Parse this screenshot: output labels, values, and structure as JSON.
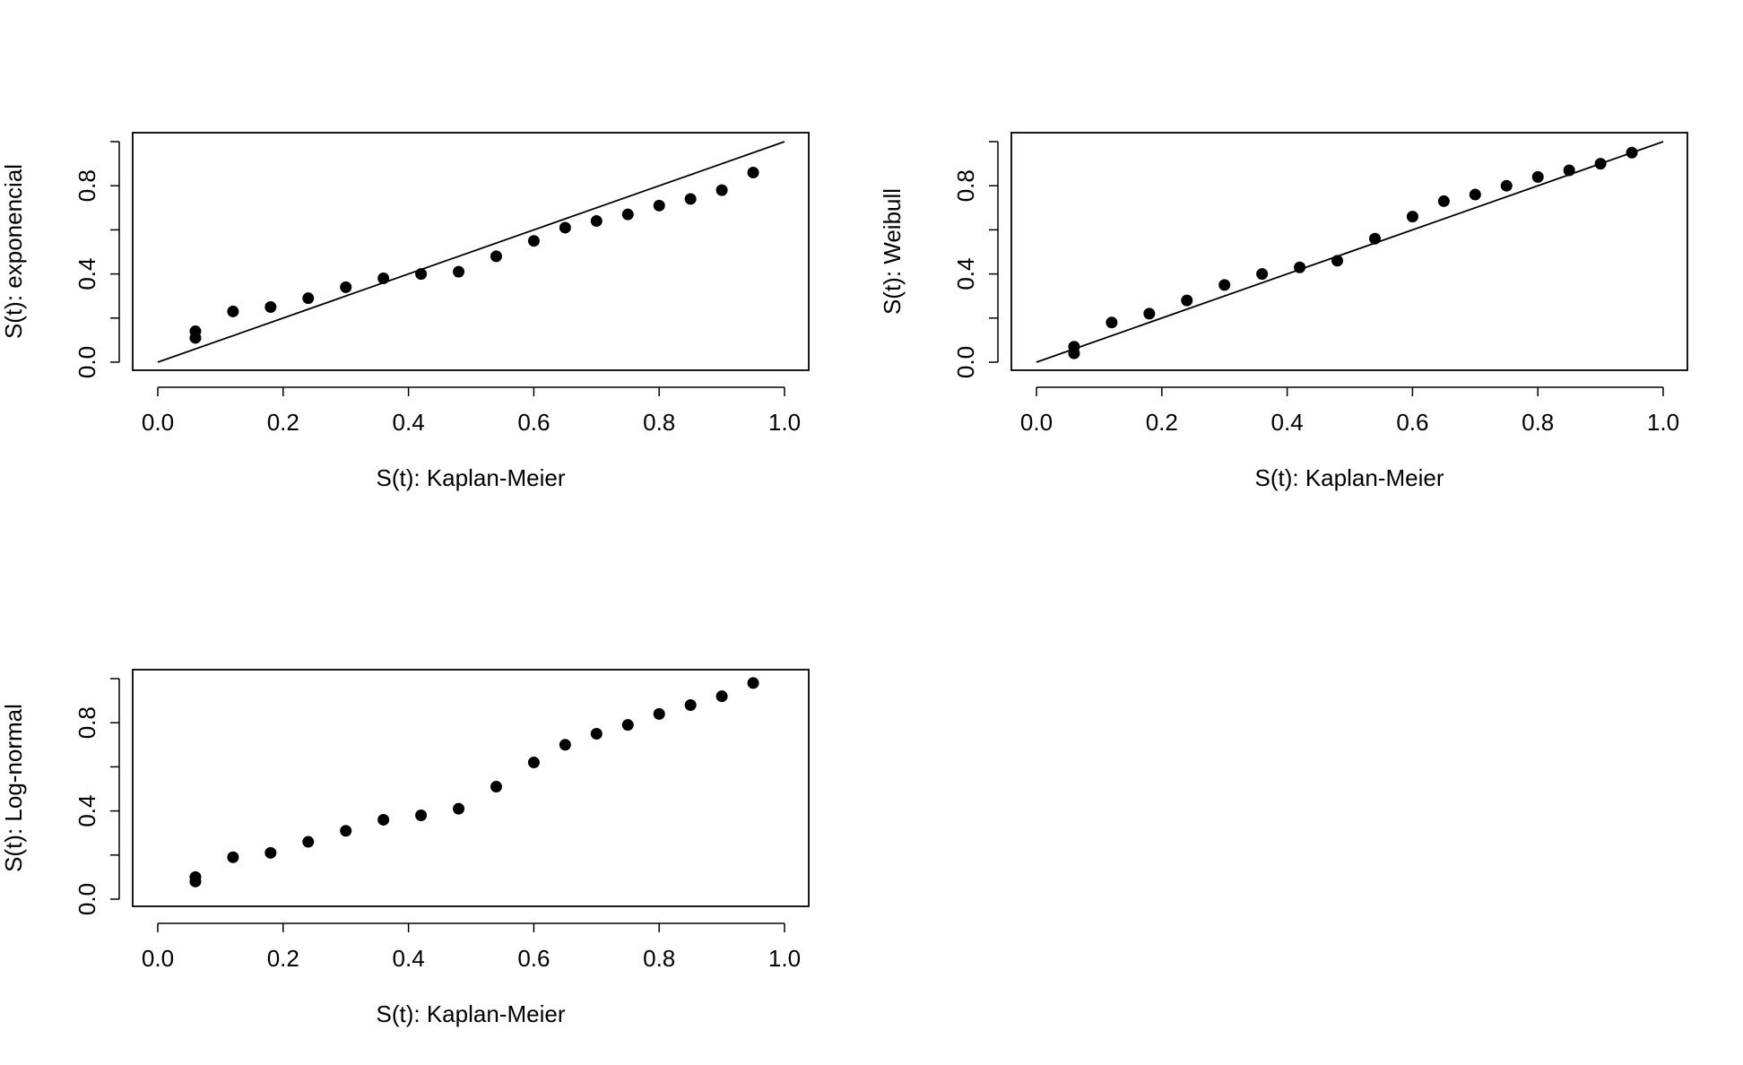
{
  "chart_data": [
    {
      "type": "scatter",
      "xlabel": "S(t): Kaplan-Meier",
      "ylabel": "S(t): exponencial",
      "xlim": [
        0,
        1
      ],
      "ylim": [
        0,
        1
      ],
      "xticks": [
        "0.0",
        "0.2",
        "0.4",
        "0.6",
        "0.8",
        "1.0"
      ],
      "yticks": [
        "0.0",
        "0.4",
        "0.8"
      ],
      "reference_line": "y = x",
      "x": [
        0.06,
        0.06,
        0.12,
        0.18,
        0.24,
        0.3,
        0.36,
        0.42,
        0.48,
        0.54,
        0.6,
        0.65,
        0.7,
        0.75,
        0.8,
        0.85,
        0.9,
        0.95
      ],
      "y": [
        0.11,
        0.14,
        0.23,
        0.25,
        0.29,
        0.34,
        0.38,
        0.4,
        0.41,
        0.48,
        0.55,
        0.61,
        0.64,
        0.67,
        0.71,
        0.74,
        0.78,
        0.86
      ]
    },
    {
      "type": "scatter",
      "xlabel": "S(t): Kaplan-Meier",
      "ylabel": "S(t): Weibull",
      "xlim": [
        0,
        1
      ],
      "ylim": [
        0,
        1
      ],
      "xticks": [
        "0.0",
        "0.2",
        "0.4",
        "0.6",
        "0.8",
        "1.0"
      ],
      "yticks": [
        "0.0",
        "0.4",
        "0.8"
      ],
      "reference_line": "y = x",
      "x": [
        0.06,
        0.06,
        0.12,
        0.18,
        0.24,
        0.3,
        0.36,
        0.42,
        0.48,
        0.54,
        0.6,
        0.65,
        0.7,
        0.75,
        0.8,
        0.85,
        0.9,
        0.95
      ],
      "y": [
        0.04,
        0.07,
        0.18,
        0.22,
        0.28,
        0.35,
        0.4,
        0.43,
        0.46,
        0.56,
        0.66,
        0.73,
        0.76,
        0.8,
        0.84,
        0.87,
        0.9,
        0.95
      ]
    },
    {
      "type": "scatter",
      "xlabel": "S(t): Kaplan-Meier",
      "ylabel": "S(t): Log-normal",
      "xlim": [
        0,
        1
      ],
      "ylim": [
        0,
        1
      ],
      "xticks": [
        "0.0",
        "0.2",
        "0.4",
        "0.6",
        "0.8",
        "1.0"
      ],
      "yticks": [
        "0.0",
        "0.4",
        "0.8"
      ],
      "reference_line": "none",
      "x": [
        0.06,
        0.06,
        0.12,
        0.18,
        0.24,
        0.3,
        0.36,
        0.42,
        0.48,
        0.54,
        0.6,
        0.65,
        0.7,
        0.75,
        0.8,
        0.85,
        0.9,
        0.95
      ],
      "y": [
        0.08,
        0.1,
        0.19,
        0.21,
        0.26,
        0.31,
        0.36,
        0.38,
        0.41,
        0.51,
        0.62,
        0.7,
        0.75,
        0.79,
        0.84,
        0.88,
        0.92,
        0.98
      ]
    }
  ]
}
